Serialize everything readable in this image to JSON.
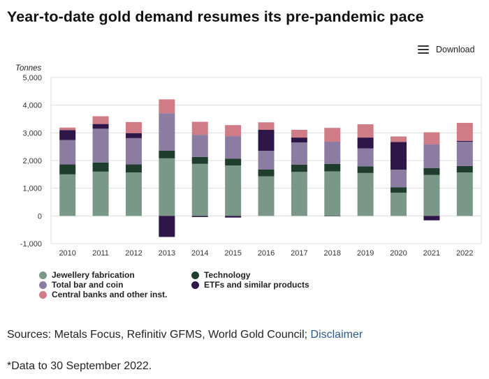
{
  "title": "Year-to-date gold demand resumes its pre-pandemic pace",
  "download": {
    "label": "Download",
    "icon": "hamburger-menu-icon"
  },
  "sources": {
    "text": "Sources: Metals Focus, Refinitiv GFMS, World Gold Council; ",
    "link": "Disclaimer"
  },
  "footnote": "*Data to 30 September 2022.",
  "colors": {
    "jewellery": "#7a9888",
    "technology": "#1f3d2c",
    "bar_coin": "#8c7ca2",
    "etfs": "#2e1748",
    "central_banks": "#d07c86",
    "grid": "#dcdcdc",
    "link": "#2a5a8a"
  },
  "chart_data": {
    "type": "bar",
    "stacked": true,
    "title": "Year-to-date gold demand resumes its pre-pandemic pace",
    "ylabel": "Tonnes",
    "xlabel": "",
    "ylim": [
      -1000,
      5000
    ],
    "yticks": [
      5000,
      4000,
      3000,
      2000,
      1000,
      0,
      -1000
    ],
    "ytick_labels": [
      "5,000",
      "4,000",
      "3,000",
      "2,000",
      "1,000",
      "0",
      "-1,000"
    ],
    "grid": true,
    "legend_position": "bottom-left",
    "categories": [
      "2010",
      "2011",
      "2012",
      "2013",
      "2014",
      "2015",
      "2016",
      "2017",
      "2018",
      "2019",
      "2020",
      "2021",
      "2022"
    ],
    "series": [
      {
        "name": "Jewellery fabrication",
        "color_key": "jewellery",
        "values": [
          1500,
          1600,
          1570,
          2080,
          1880,
          1820,
          1430,
          1590,
          1610,
          1550,
          840,
          1480,
          1570
        ]
      },
      {
        "name": "Technology",
        "color_key": "technology",
        "values": [
          360,
          330,
          290,
          280,
          250,
          250,
          250,
          260,
          270,
          240,
          190,
          250,
          230
        ]
      },
      {
        "name": "Total bar and coin",
        "color_key": "bar_coin",
        "values": [
          880,
          1220,
          950,
          1350,
          800,
          810,
          670,
          800,
          800,
          650,
          640,
          860,
          880
        ]
      },
      {
        "name": "ETFs and similar products",
        "color_key": "etfs",
        "values": [
          360,
          170,
          180,
          -760,
          -40,
          -60,
          760,
          180,
          -10,
          390,
          1000,
          -160,
          30
        ]
      },
      {
        "name": "Central banks and other inst.",
        "color_key": "central_banks",
        "values": [
          90,
          280,
          400,
          500,
          470,
          400,
          270,
          280,
          500,
          480,
          200,
          430,
          650
        ]
      }
    ]
  },
  "legend": [
    {
      "name": "Jewellery fabrication",
      "color_key": "jewellery"
    },
    {
      "name": "Technology",
      "color_key": "technology"
    },
    {
      "name": "Total bar and coin",
      "color_key": "bar_coin"
    },
    {
      "name": "ETFs and similar products",
      "color_key": "etfs"
    },
    {
      "name": "Central banks and other inst.",
      "color_key": "central_banks"
    }
  ]
}
